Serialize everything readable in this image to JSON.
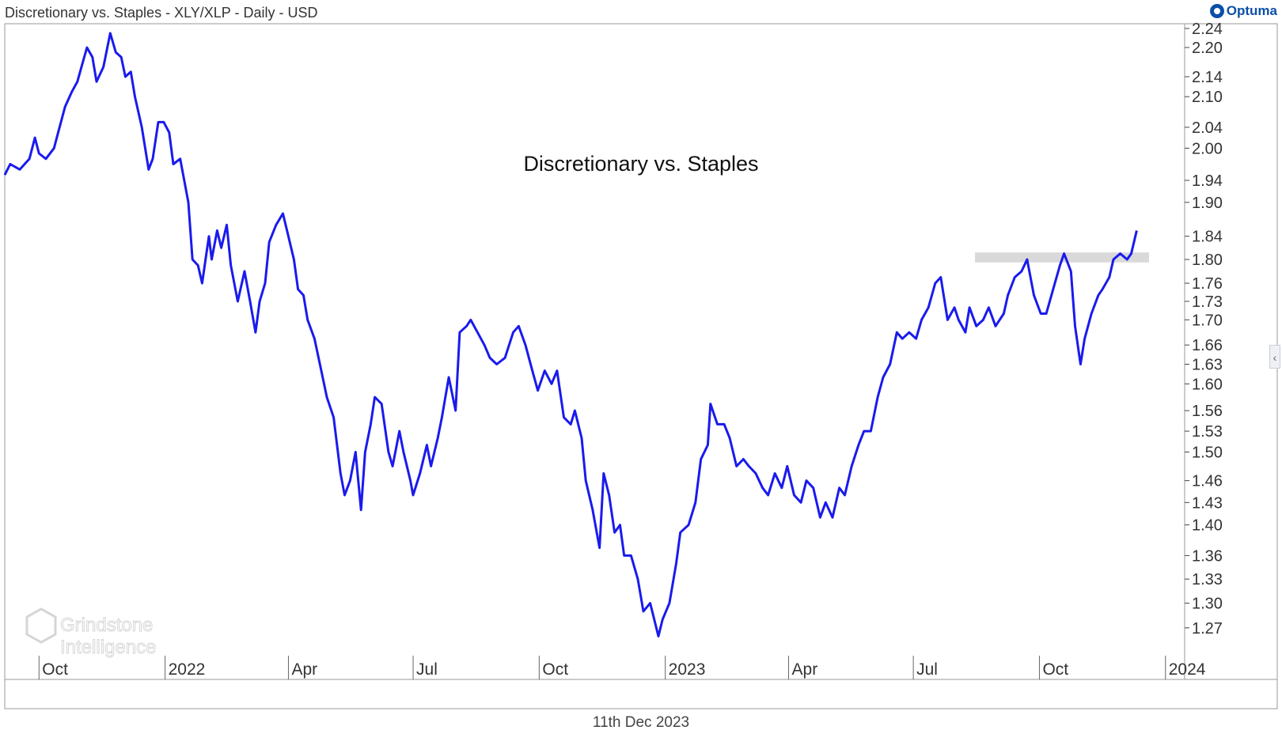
{
  "header": {
    "title": "Discretionary vs. Staples - XLY/XLP - Daily - USD",
    "brand": "Optuma"
  },
  "footer": {
    "date": "11th Dec 2023"
  },
  "watermark": {
    "line1": "Grindstone",
    "line2": "Intelligence"
  },
  "side_handle_glyph": "‹",
  "colors": {
    "series": "#1a1aee",
    "band": "#d9d9d9",
    "axis": "#444444",
    "frame": "#9a9a9a"
  },
  "chart_data": {
    "type": "line",
    "title": "Discretionary vs. Staples",
    "scale": "log",
    "ylim": [
      1.25,
      2.24
    ],
    "yticks": [
      "2.24",
      "2.20",
      "2.14",
      "2.10",
      "2.04",
      "2.00",
      "1.94",
      "1.90",
      "1.84",
      "1.80",
      "1.76",
      "1.73",
      "1.70",
      "1.66",
      "1.63",
      "1.60",
      "1.56",
      "1.53",
      "1.50",
      "1.46",
      "1.43",
      "1.40",
      "1.36",
      "1.33",
      "1.30",
      "1.27"
    ],
    "x_range": [
      "2021-09-06",
      "2024-01-15"
    ],
    "xticks": [
      {
        "label": "Oct",
        "date": "2021-10-01"
      },
      {
        "label": "2022",
        "date": "2022-01-01"
      },
      {
        "label": "Apr",
        "date": "2022-04-01"
      },
      {
        "label": "Jul",
        "date": "2022-07-01"
      },
      {
        "label": "Oct",
        "date": "2022-10-01"
      },
      {
        "label": "2023",
        "date": "2023-01-01"
      },
      {
        "label": "Apr",
        "date": "2023-04-01"
      },
      {
        "label": "Jul",
        "date": "2023-07-01"
      },
      {
        "label": "Oct",
        "date": "2023-10-01"
      },
      {
        "label": "2024",
        "date": "2024-01-01"
      }
    ],
    "resistance_band": {
      "from_date": "2023-08-15",
      "to_date": "2023-12-20",
      "low": 1.795,
      "high": 1.812
    },
    "series": [
      {
        "name": "XLY/XLP",
        "points": [
          [
            "2021-09-06",
            1.95
          ],
          [
            "2021-09-10",
            1.97
          ],
          [
            "2021-09-17",
            1.96
          ],
          [
            "2021-09-24",
            1.98
          ],
          [
            "2021-09-28",
            2.02
          ],
          [
            "2021-10-01",
            1.99
          ],
          [
            "2021-10-06",
            1.98
          ],
          [
            "2021-10-12",
            2.0
          ],
          [
            "2021-10-15",
            2.03
          ],
          [
            "2021-10-20",
            2.08
          ],
          [
            "2021-10-25",
            2.11
          ],
          [
            "2021-10-29",
            2.13
          ],
          [
            "2021-11-02",
            2.17
          ],
          [
            "2021-11-05",
            2.2
          ],
          [
            "2021-11-09",
            2.18
          ],
          [
            "2021-11-12",
            2.13
          ],
          [
            "2021-11-17",
            2.16
          ],
          [
            "2021-11-22",
            2.23
          ],
          [
            "2021-11-26",
            2.19
          ],
          [
            "2021-11-30",
            2.18
          ],
          [
            "2021-12-03",
            2.14
          ],
          [
            "2021-12-07",
            2.15
          ],
          [
            "2021-12-10",
            2.1
          ],
          [
            "2021-12-15",
            2.04
          ],
          [
            "2021-12-20",
            1.96
          ],
          [
            "2021-12-23",
            1.98
          ],
          [
            "2021-12-27",
            2.05
          ],
          [
            "2021-12-31",
            2.05
          ],
          [
            "2022-01-04",
            2.03
          ],
          [
            "2022-01-07",
            1.97
          ],
          [
            "2022-01-12",
            1.98
          ],
          [
            "2022-01-18",
            1.9
          ],
          [
            "2022-01-21",
            1.8
          ],
          [
            "2022-01-25",
            1.79
          ],
          [
            "2022-01-28",
            1.76
          ],
          [
            "2022-02-02",
            1.84
          ],
          [
            "2022-02-04",
            1.8
          ],
          [
            "2022-02-08",
            1.85
          ],
          [
            "2022-02-11",
            1.82
          ],
          [
            "2022-02-15",
            1.86
          ],
          [
            "2022-02-18",
            1.79
          ],
          [
            "2022-02-23",
            1.73
          ],
          [
            "2022-02-28",
            1.78
          ],
          [
            "2022-03-04",
            1.73
          ],
          [
            "2022-03-08",
            1.68
          ],
          [
            "2022-03-11",
            1.73
          ],
          [
            "2022-03-15",
            1.76
          ],
          [
            "2022-03-18",
            1.83
          ],
          [
            "2022-03-23",
            1.86
          ],
          [
            "2022-03-28",
            1.88
          ],
          [
            "2022-03-31",
            1.85
          ],
          [
            "2022-04-05",
            1.8
          ],
          [
            "2022-04-08",
            1.75
          ],
          [
            "2022-04-12",
            1.74
          ],
          [
            "2022-04-15",
            1.7
          ],
          [
            "2022-04-20",
            1.67
          ],
          [
            "2022-04-25",
            1.62
          ],
          [
            "2022-04-29",
            1.58
          ],
          [
            "2022-05-04",
            1.55
          ],
          [
            "2022-05-09",
            1.47
          ],
          [
            "2022-05-12",
            1.44
          ],
          [
            "2022-05-16",
            1.46
          ],
          [
            "2022-05-20",
            1.5
          ],
          [
            "2022-05-24",
            1.42
          ],
          [
            "2022-05-27",
            1.5
          ],
          [
            "2022-05-31",
            1.54
          ],
          [
            "2022-06-03",
            1.58
          ],
          [
            "2022-06-08",
            1.57
          ],
          [
            "2022-06-13",
            1.5
          ],
          [
            "2022-06-16",
            1.48
          ],
          [
            "2022-06-21",
            1.53
          ],
          [
            "2022-06-24",
            1.5
          ],
          [
            "2022-06-29",
            1.46
          ],
          [
            "2022-07-01",
            1.44
          ],
          [
            "2022-07-06",
            1.47
          ],
          [
            "2022-07-11",
            1.51
          ],
          [
            "2022-07-14",
            1.48
          ],
          [
            "2022-07-19",
            1.52
          ],
          [
            "2022-07-22",
            1.55
          ],
          [
            "2022-07-27",
            1.61
          ],
          [
            "2022-08-01",
            1.56
          ],
          [
            "2022-08-04",
            1.68
          ],
          [
            "2022-08-09",
            1.69
          ],
          [
            "2022-08-12",
            1.7
          ],
          [
            "2022-08-17",
            1.68
          ],
          [
            "2022-08-22",
            1.66
          ],
          [
            "2022-08-26",
            1.64
          ],
          [
            "2022-08-31",
            1.63
          ],
          [
            "2022-09-06",
            1.64
          ],
          [
            "2022-09-12",
            1.68
          ],
          [
            "2022-09-16",
            1.69
          ],
          [
            "2022-09-21",
            1.66
          ],
          [
            "2022-09-26",
            1.62
          ],
          [
            "2022-09-30",
            1.59
          ],
          [
            "2022-10-05",
            1.62
          ],
          [
            "2022-10-10",
            1.6
          ],
          [
            "2022-10-14",
            1.62
          ],
          [
            "2022-10-19",
            1.55
          ],
          [
            "2022-10-24",
            1.54
          ],
          [
            "2022-10-27",
            1.56
          ],
          [
            "2022-11-01",
            1.52
          ],
          [
            "2022-11-04",
            1.46
          ],
          [
            "2022-11-09",
            1.42
          ],
          [
            "2022-11-14",
            1.37
          ],
          [
            "2022-11-17",
            1.47
          ],
          [
            "2022-11-21",
            1.44
          ],
          [
            "2022-11-25",
            1.39
          ],
          [
            "2022-11-29",
            1.4
          ],
          [
            "2022-12-02",
            1.36
          ],
          [
            "2022-12-07",
            1.36
          ],
          [
            "2022-12-12",
            1.33
          ],
          [
            "2022-12-16",
            1.29
          ],
          [
            "2022-12-21",
            1.3
          ],
          [
            "2022-12-27",
            1.26
          ],
          [
            "2022-12-30",
            1.28
          ],
          [
            "2023-01-04",
            1.3
          ],
          [
            "2023-01-09",
            1.35
          ],
          [
            "2023-01-12",
            1.39
          ],
          [
            "2023-01-18",
            1.4
          ],
          [
            "2023-01-23",
            1.43
          ],
          [
            "2023-01-27",
            1.49
          ],
          [
            "2023-02-01",
            1.51
          ],
          [
            "2023-02-03",
            1.57
          ],
          [
            "2023-02-08",
            1.54
          ],
          [
            "2023-02-13",
            1.54
          ],
          [
            "2023-02-17",
            1.52
          ],
          [
            "2023-02-22",
            1.48
          ],
          [
            "2023-02-27",
            1.49
          ],
          [
            "2023-03-03",
            1.48
          ],
          [
            "2023-03-08",
            1.47
          ],
          [
            "2023-03-13",
            1.45
          ],
          [
            "2023-03-17",
            1.44
          ],
          [
            "2023-03-22",
            1.47
          ],
          [
            "2023-03-27",
            1.45
          ],
          [
            "2023-03-31",
            1.48
          ],
          [
            "2023-04-05",
            1.44
          ],
          [
            "2023-04-10",
            1.43
          ],
          [
            "2023-04-14",
            1.46
          ],
          [
            "2023-04-19",
            1.45
          ],
          [
            "2023-04-24",
            1.41
          ],
          [
            "2023-04-28",
            1.43
          ],
          [
            "2023-05-03",
            1.41
          ],
          [
            "2023-05-08",
            1.45
          ],
          [
            "2023-05-12",
            1.44
          ],
          [
            "2023-05-17",
            1.48
          ],
          [
            "2023-05-22",
            1.51
          ],
          [
            "2023-05-26",
            1.53
          ],
          [
            "2023-05-31",
            1.53
          ],
          [
            "2023-06-05",
            1.58
          ],
          [
            "2023-06-09",
            1.61
          ],
          [
            "2023-06-14",
            1.63
          ],
          [
            "2023-06-19",
            1.68
          ],
          [
            "2023-06-23",
            1.67
          ],
          [
            "2023-06-28",
            1.68
          ],
          [
            "2023-07-03",
            1.67
          ],
          [
            "2023-07-07",
            1.7
          ],
          [
            "2023-07-12",
            1.72
          ],
          [
            "2023-07-17",
            1.76
          ],
          [
            "2023-07-21",
            1.77
          ],
          [
            "2023-07-26",
            1.7
          ],
          [
            "2023-07-31",
            1.72
          ],
          [
            "2023-08-03",
            1.7
          ],
          [
            "2023-08-08",
            1.68
          ],
          [
            "2023-08-11",
            1.72
          ],
          [
            "2023-08-16",
            1.69
          ],
          [
            "2023-08-21",
            1.7
          ],
          [
            "2023-08-25",
            1.72
          ],
          [
            "2023-08-30",
            1.69
          ],
          [
            "2023-09-05",
            1.71
          ],
          [
            "2023-09-08",
            1.74
          ],
          [
            "2023-09-13",
            1.77
          ],
          [
            "2023-09-18",
            1.78
          ],
          [
            "2023-09-22",
            1.8
          ],
          [
            "2023-09-27",
            1.74
          ],
          [
            "2023-10-02",
            1.71
          ],
          [
            "2023-10-06",
            1.71
          ],
          [
            "2023-10-11",
            1.75
          ],
          [
            "2023-10-16",
            1.79
          ],
          [
            "2023-10-19",
            1.81
          ],
          [
            "2023-10-24",
            1.78
          ],
          [
            "2023-10-27",
            1.69
          ],
          [
            "2023-10-31",
            1.63
          ],
          [
            "2023-11-03",
            1.67
          ],
          [
            "2023-11-08",
            1.71
          ],
          [
            "2023-11-13",
            1.74
          ],
          [
            "2023-11-16",
            1.75
          ],
          [
            "2023-11-21",
            1.77
          ],
          [
            "2023-11-24",
            1.8
          ],
          [
            "2023-11-29",
            1.81
          ],
          [
            "2023-12-04",
            1.8
          ],
          [
            "2023-12-07",
            1.81
          ],
          [
            "2023-12-11",
            1.85
          ]
        ]
      }
    ]
  }
}
